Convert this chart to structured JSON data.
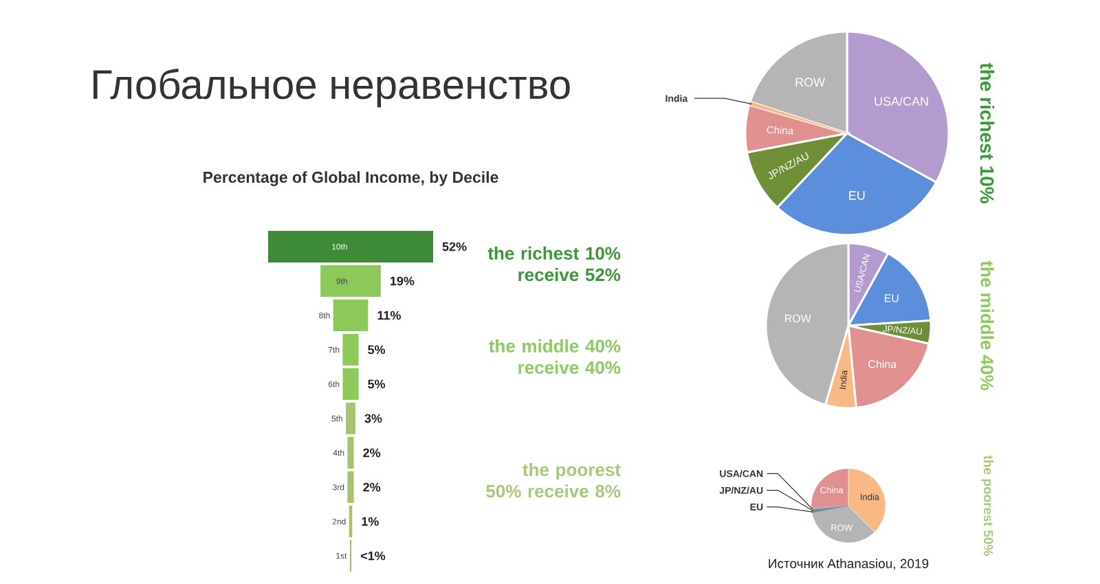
{
  "chart_data": [
    {
      "type": "other",
      "title": "Глобальное неравенство",
      "subtitle": "Percentage of Global Income, by Decile",
      "categories": [
        "10th",
        "9th",
        "8th",
        "7th",
        "6th",
        "5th",
        "4th",
        "3rd",
        "2nd",
        "1st"
      ],
      "values": [
        52,
        19,
        11,
        5,
        5,
        3,
        2,
        2,
        1,
        0.5
      ],
      "value_labels": [
        "52%",
        "19%",
        "11%",
        "5%",
        "5%",
        "3%",
        "2%",
        "2%",
        "1%",
        "<1%"
      ],
      "colors": [
        "#3d8b37",
        "#8dc95a",
        "#8dc95a",
        "#8dc95a",
        "#8dc95a",
        "#a6c46f",
        "#a6c46f",
        "#a6c46f",
        "#a6c46f",
        "#a6c46f"
      ],
      "annotations": [
        "the richest 10% receive 52%",
        "the middle 40% receive 40%",
        "the poorest 50% receive 8%"
      ]
    },
    {
      "type": "pie",
      "title": "the richest 10%",
      "categories": [
        "USA/CAN",
        "EU",
        "JP/NZ/AU",
        "China",
        "India",
        "ROW"
      ],
      "values": [
        33,
        29,
        10,
        7.5,
        0.5,
        20
      ],
      "colors": [
        "#b39bd0",
        "#5b8fdc",
        "#6e8f36",
        "#e0908e",
        "#f9b985",
        "#b5b5b5"
      ]
    },
    {
      "type": "pie",
      "title": "the middle 40%",
      "categories": [
        "USA/CAN",
        "EU",
        "JP/NZ/AU",
        "China",
        "India",
        "ROW"
      ],
      "values": [
        8,
        16,
        4.5,
        20,
        6,
        45.5
      ],
      "colors": [
        "#b39bd0",
        "#5b8fdc",
        "#6e8f36",
        "#e0908e",
        "#f9b985",
        "#b5b5b5"
      ]
    },
    {
      "type": "pie",
      "title": "the poorest 50%",
      "categories": [
        "India",
        "ROW",
        "EU",
        "JP/NZ/AU",
        "USA/CAN",
        "China"
      ],
      "values": [
        37.5,
        34.4,
        0.7,
        0.7,
        0.7,
        26
      ],
      "colors": [
        "#f9b985",
        "#b5b5b5",
        "#5b8fdc",
        "#6e8f36",
        "#b39bd0",
        "#e0908e"
      ],
      "annotations": [
        "Источник Athanasiou, 2019"
      ]
    }
  ]
}
